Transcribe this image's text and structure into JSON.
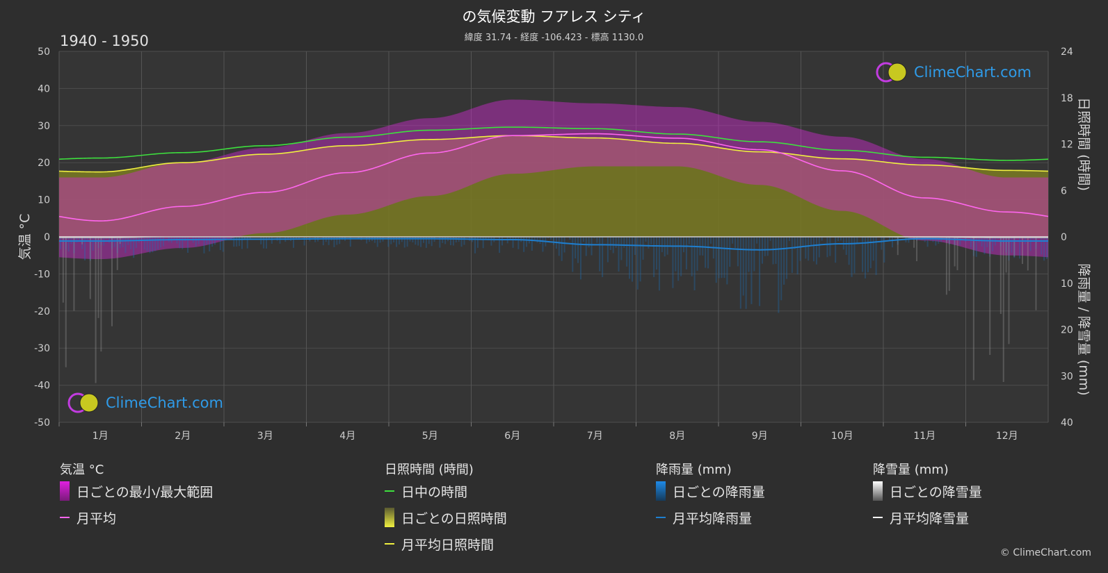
{
  "header": {
    "title": "の気候変動 フアレス シティ",
    "subtitle": "緯度 31.74 - 経度 -106.423 - 標高 1130.0",
    "period": "1940 - 1950"
  },
  "brand": {
    "logo_text": "ClimeChart.com",
    "copyright": "© ClimeChart.com"
  },
  "colors": {
    "background": "#2e2e2e",
    "temp_range": "#e020e0",
    "temp_mean": "#ff66ee",
    "daylight": "#3ee03e",
    "sunshine_bar": "#b8b820",
    "sunshine_mean": "#f0f040",
    "rain": "#1e7fd0",
    "snow": "#d8d8d8"
  },
  "chart_data": {
    "type": "line",
    "months": [
      "1月",
      "2月",
      "3月",
      "4月",
      "5月",
      "6月",
      "7月",
      "8月",
      "9月",
      "10月",
      "11月",
      "12月"
    ],
    "left_axis": {
      "label": "気温 °C",
      "ticks": [
        "50",
        "40",
        "30",
        "20",
        "10",
        "0",
        "-10",
        "-20",
        "-30",
        "-40",
        "-50"
      ],
      "ylim": [
        -50,
        50
      ]
    },
    "right_axis_top": {
      "label": "日照時間 (時間)",
      "ticks": [
        "24",
        "18",
        "12",
        "6",
        "0"
      ],
      "ylim": [
        0,
        24
      ]
    },
    "right_axis_bottom": {
      "label": "降雨量 / 降雪量 (mm)",
      "ticks": [
        "10",
        "20",
        "30",
        "40"
      ],
      "ylim": [
        0,
        40
      ]
    },
    "series": [
      {
        "name": "日中の時間",
        "unit": "hours",
        "values": [
          10.2,
          10.9,
          11.8,
          12.9,
          13.8,
          14.2,
          14.0,
          13.3,
          12.3,
          11.2,
          10.3,
          9.9
        ]
      },
      {
        "name": "月平均日照時間",
        "unit": "hours",
        "values": [
          8.4,
          9.6,
          10.7,
          11.8,
          12.6,
          13.1,
          12.8,
          12.1,
          11.0,
          10.1,
          9.3,
          8.6
        ]
      },
      {
        "name": "月平均",
        "unit": "°C",
        "values": [
          4.3,
          8.2,
          12.0,
          17.3,
          22.6,
          27.3,
          27.8,
          26.6,
          23.5,
          17.8,
          10.5,
          6.7
        ]
      },
      {
        "name": "月平均降雨量",
        "unit": "mm",
        "values": [
          0.9,
          0.6,
          0.5,
          0.4,
          0.4,
          0.6,
          1.7,
          2.0,
          2.8,
          1.5,
          0.4,
          0.9
        ]
      },
      {
        "name": "月平均降雪量",
        "unit": "mm",
        "values": [
          0.2,
          0.0,
          0.0,
          0.0,
          0.0,
          0.0,
          0.0,
          0.0,
          0.0,
          0.0,
          0.1,
          0.2
        ]
      }
    ],
    "daily_temp_range": {
      "name": "日ごとの最小/最大範囲",
      "max": [
        16,
        20,
        24,
        28,
        32,
        37,
        36,
        35,
        31,
        27,
        21,
        16
      ],
      "min": [
        -6,
        -3,
        1,
        6,
        11,
        17,
        19,
        19,
        14,
        7,
        -1,
        -5
      ]
    },
    "grid": true
  },
  "legend": {
    "temperature": {
      "heading": "気温 °C",
      "items": [
        "日ごとの最小/最大範囲",
        "月平均"
      ]
    },
    "sunshine": {
      "heading": "日照時間 (時間)",
      "items": [
        "日中の時間",
        "日ごとの日照時間",
        "月平均日照時間"
      ]
    },
    "rain": {
      "heading": "降雨量 (mm)",
      "items": [
        "日ごとの降雨量",
        "月平均降雨量"
      ]
    },
    "snow": {
      "heading": "降雪量 (mm)",
      "items": [
        "日ごとの降雪量",
        "月平均降雪量"
      ]
    }
  }
}
